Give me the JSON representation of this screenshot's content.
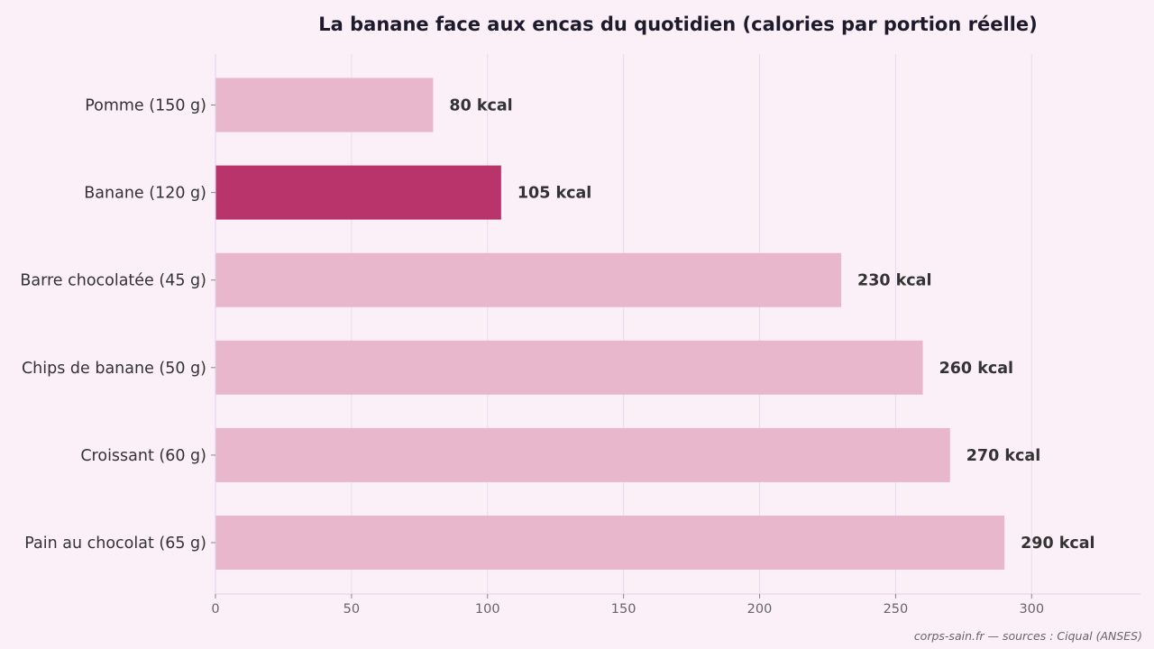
{
  "chart_data": {
    "type": "bar",
    "orientation": "horizontal",
    "title": "La banane face aux encas du quotidien (calories par portion réelle)",
    "categories": [
      "Pomme (150 g)",
      "Banane (120 g)",
      "Barre chocolatée (45 g)",
      "Chips de banane (50 g)",
      "Croissant (60 g)",
      "Pain au chocolat (65 g)"
    ],
    "values": [
      80,
      105,
      230,
      260,
      270,
      290
    ],
    "value_labels": [
      "80 kcal",
      "105 kcal",
      "230 kcal",
      "260 kcal",
      "270 kcal",
      "290 kcal"
    ],
    "highlight_index": 1,
    "xlim": [
      0,
      340
    ],
    "xticks": [
      0,
      50,
      100,
      150,
      200,
      250,
      300
    ],
    "xlabel": "",
    "ylabel": "",
    "grid": "vertical",
    "legend": "none",
    "colors": {
      "bar": "#e8b7cc",
      "highlight": "#b8346a",
      "background": "#fbeff8"
    }
  },
  "source": "corps-sain.fr — sources : Ciqual (ANSES)"
}
